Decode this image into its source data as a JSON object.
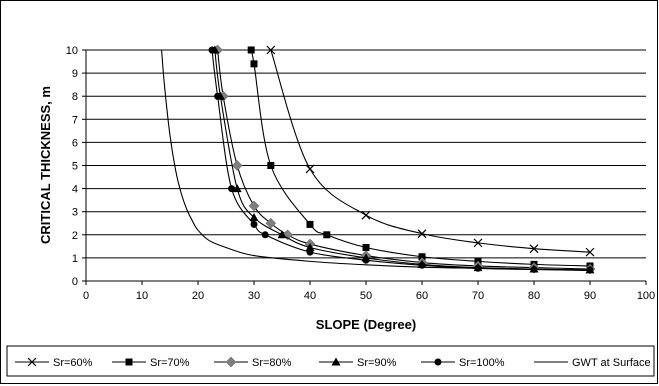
{
  "chart_data": {
    "type": "line",
    "title": "",
    "xlabel": "SLOPE (Degree)",
    "ylabel": "CRITICAL THICKNESS, m",
    "xlim": [
      0,
      100
    ],
    "ylim": [
      0,
      10
    ],
    "xticks": [
      "0",
      "10",
      "20",
      "30",
      "40",
      "50",
      "60",
      "70",
      "80",
      "90",
      "100"
    ],
    "yticks": [
      "0",
      "1",
      "2",
      "3",
      "4",
      "5",
      "6",
      "7",
      "8",
      "9",
      "10"
    ],
    "grid": "horizontal",
    "legend_position": "bottom",
    "series": [
      {
        "name": "Sr=60%",
        "marker": "x",
        "color": "#000000",
        "x": [
          33,
          40,
          50,
          60,
          70,
          80,
          90
        ],
        "y": [
          10,
          4.85,
          2.85,
          2.05,
          1.65,
          1.4,
          1.25
        ]
      },
      {
        "name": "Sr=70%",
        "marker": "square",
        "color": "#000000",
        "x": [
          29.5,
          30,
          33,
          40,
          43,
          50,
          60,
          70,
          80,
          90
        ],
        "y": [
          10,
          9.4,
          5.0,
          2.45,
          2.0,
          1.45,
          1.05,
          0.85,
          0.72,
          0.65
        ]
      },
      {
        "name": "Sr=80%",
        "marker": "diamond",
        "color": "#7f7f7f",
        "x": [
          23.5,
          24.5,
          27,
          30,
          33,
          36,
          40,
          50,
          60,
          70,
          80,
          90
        ],
        "y": [
          10,
          8.0,
          5.0,
          3.25,
          2.5,
          2.0,
          1.6,
          1.1,
          0.8,
          0.65,
          0.58,
          0.52
        ]
      },
      {
        "name": "Sr=90%",
        "marker": "triangle",
        "color": "#000000",
        "x": [
          23,
          24,
          27,
          30,
          35,
          40,
          50,
          60,
          70,
          80,
          90
        ],
        "y": [
          10,
          8.0,
          4.0,
          2.75,
          2.0,
          1.45,
          1.0,
          0.72,
          0.58,
          0.52,
          0.48
        ]
      },
      {
        "name": "Sr=100%",
        "marker": "circle",
        "color": "#000000",
        "x": [
          22.5,
          23.5,
          26,
          30,
          32,
          40,
          50,
          60,
          70,
          80,
          90
        ],
        "y": [
          10,
          8.0,
          4.0,
          2.45,
          2.0,
          1.25,
          0.9,
          0.68,
          0.55,
          0.5,
          0.48
        ]
      },
      {
        "name": "GWT at Surface",
        "marker": "none",
        "color": "#000000",
        "x": [
          13.5,
          14,
          15,
          16,
          17,
          18,
          19,
          20,
          22,
          25,
          30,
          40,
          50,
          60,
          70,
          80,
          90
        ],
        "y": [
          10.0,
          8.5,
          6.3,
          4.8,
          3.8,
          3.1,
          2.6,
          2.2,
          1.75,
          1.45,
          1.1,
          0.85,
          0.7,
          0.6,
          0.55,
          0.5,
          0.45
        ]
      }
    ]
  }
}
